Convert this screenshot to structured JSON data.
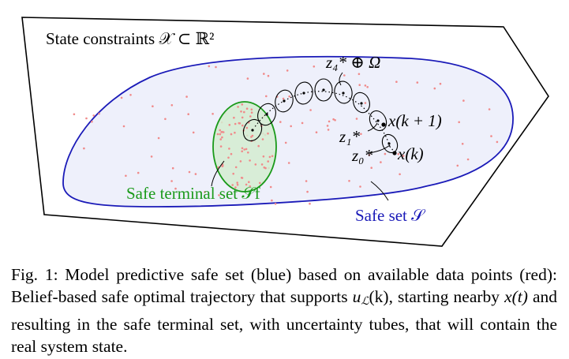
{
  "figure": {
    "constraints_label": "State constraints 𝒳 ⊂ ℝ²",
    "trajectory_tube_label": "z₄* ⊕ Ω",
    "next_state_label": "x(k + 1)",
    "z1_label": "z₁*",
    "z0_label": "z₀*",
    "current_state_label": "x(k)",
    "terminal_set_label": "Safe terminal set 𝒮f",
    "safe_set_label": "Safe set 𝒮",
    "colors": {
      "safe_set": "#1a1ab8",
      "safe_set_fill": "#eef0fb",
      "terminal_set": "#1a9a1a",
      "terminal_fill": "#d4ecd0",
      "data_points": "#f08a8a",
      "outline": "#000000"
    }
  },
  "caption": {
    "text_1": "Fig. 1: Model predictive safe set (blue) based on available data points (red): Belief-based safe optimal trajectory that supports ",
    "u_symbol": "u",
    "u_sub": "ℒ",
    "u_arg": "(k)",
    "text_2": ", starting nearby ",
    "x_symbol": "x(t)",
    "text_3": " and resulting in the safe terminal set, with uncertainty tubes, that will contain the real system state."
  }
}
